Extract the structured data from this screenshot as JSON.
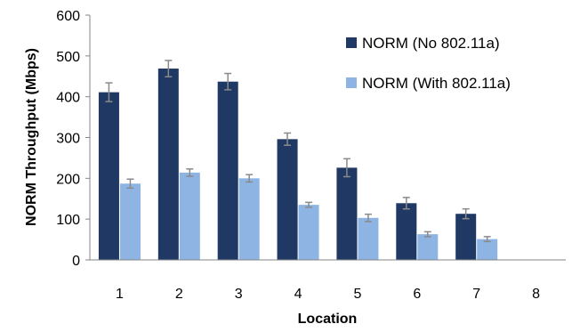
{
  "chart_data": {
    "type": "bar",
    "title": "",
    "xlabel": "Location",
    "ylabel": "NORM Throughput (Mbps)",
    "categories": [
      "1",
      "2",
      "3",
      "4",
      "5",
      "6",
      "7",
      "8"
    ],
    "ylim": [
      0,
      600
    ],
    "yticks": [
      0,
      100,
      200,
      300,
      400,
      500,
      600
    ],
    "grid": false,
    "legend_position": "top-right",
    "error_bars": true,
    "series": [
      {
        "name": "NORM (No 802.11a)",
        "color": "#1f3864",
        "values": [
          411,
          469,
          437,
          296,
          226,
          139,
          113,
          null
        ],
        "errors": [
          23,
          20,
          20,
          15,
          22,
          14,
          12,
          null
        ]
      },
      {
        "name": "NORM (With 802.11a)",
        "color": "#8db4e2",
        "values": [
          187,
          214,
          200,
          135,
          103,
          63,
          51,
          null
        ],
        "errors": [
          11,
          9,
          9,
          6,
          9,
          6,
          6,
          null
        ]
      }
    ]
  }
}
